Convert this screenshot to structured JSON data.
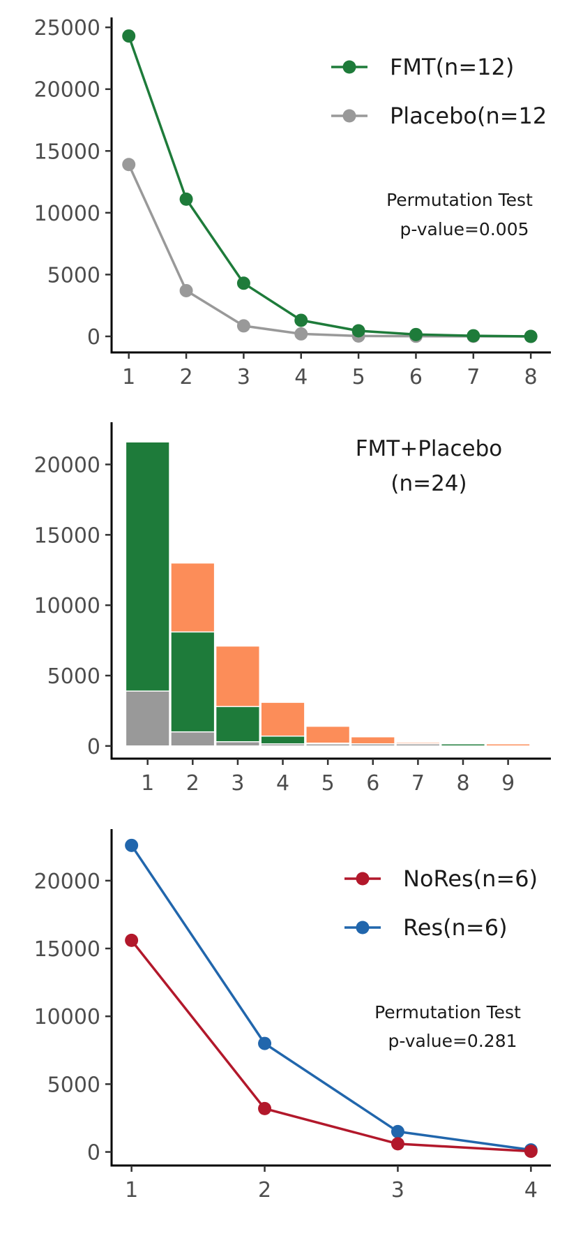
{
  "chart_data": [
    {
      "type": "line",
      "x": [
        1,
        2,
        3,
        4,
        5,
        6,
        7,
        8
      ],
      "xlim": [
        0.7,
        8.35
      ],
      "ylim": [
        -1300,
        25800
      ],
      "yticks": [
        0,
        5000,
        10000,
        15000,
        20000,
        25000
      ],
      "ytick_labels": [
        "0",
        "5000",
        "10000",
        "15000",
        "20000",
        "25000"
      ],
      "xticks": [
        1,
        2,
        3,
        4,
        5,
        6,
        7,
        8
      ],
      "xtick_labels": [
        "1",
        "2",
        "3",
        "4",
        "5",
        "6",
        "7",
        "8"
      ],
      "series": [
        {
          "name": "FMT(n=12)",
          "color": "#1e7b3a",
          "values": [
            24300,
            11100,
            4300,
            1300,
            450,
            150,
            50,
            0
          ]
        },
        {
          "name": "Placebo(n=12",
          "color": "#999999",
          "values": [
            13900,
            3700,
            850,
            200,
            30,
            10,
            5,
            0
          ]
        }
      ],
      "legend_position": "top-right",
      "annotation": [
        "Permutation Test",
        "p-value=0.005"
      ],
      "grid": false
    },
    {
      "type": "bar",
      "stacking": "overlay",
      "x": [
        1,
        2,
        3,
        4,
        5,
        6,
        7,
        8,
        9
      ],
      "xlim": [
        0.2,
        9.95
      ],
      "ylim": [
        -900,
        23000
      ],
      "yticks": [
        0,
        5000,
        10000,
        15000,
        20000
      ],
      "ytick_labels": [
        "0",
        "5000",
        "10000",
        "15000",
        "20000"
      ],
      "xticks": [
        1,
        2,
        3,
        4,
        5,
        6,
        7,
        8,
        9
      ],
      "xtick_labels": [
        "1",
        "2",
        "3",
        "4",
        "5",
        "6",
        "7",
        "8",
        "9"
      ],
      "series": [
        {
          "color": "#fc8d59",
          "values": [
            null,
            13000,
            7100,
            3100,
            1400,
            650,
            250,
            null,
            100
          ]
        },
        {
          "color": "#1e7b3a",
          "values": [
            21600,
            8100,
            2800,
            700,
            200,
            150,
            100,
            100,
            null
          ]
        },
        {
          "color": "#999999",
          "values": [
            3900,
            1000,
            300,
            100,
            50,
            20,
            10,
            null,
            null
          ]
        }
      ],
      "annotation": [
        "FMT+Placebo",
        "(n=24)"
      ],
      "grid": false
    },
    {
      "type": "line",
      "x": [
        1,
        2,
        3,
        4
      ],
      "xlim": [
        0.85,
        4.15
      ],
      "ylim": [
        -1000,
        23800
      ],
      "yticks": [
        0,
        5000,
        10000,
        15000,
        20000
      ],
      "ytick_labels": [
        "0",
        "5000",
        "10000",
        "15000",
        "20000"
      ],
      "xticks": [
        1,
        2,
        3,
        4
      ],
      "xtick_labels": [
        "1",
        "2",
        "3",
        "4"
      ],
      "series": [
        {
          "name": "NoRes(n=6)",
          "color": "#b2182b",
          "values": [
            15600,
            3200,
            600,
            50
          ]
        },
        {
          "name": "Res(n=6)",
          "color": "#2166ac",
          "values": [
            22600,
            8000,
            1500,
            150
          ]
        }
      ],
      "legend_position": "top-right",
      "annotation": [
        "Permutation Test",
        "p-value=0.281"
      ],
      "grid": false
    }
  ]
}
